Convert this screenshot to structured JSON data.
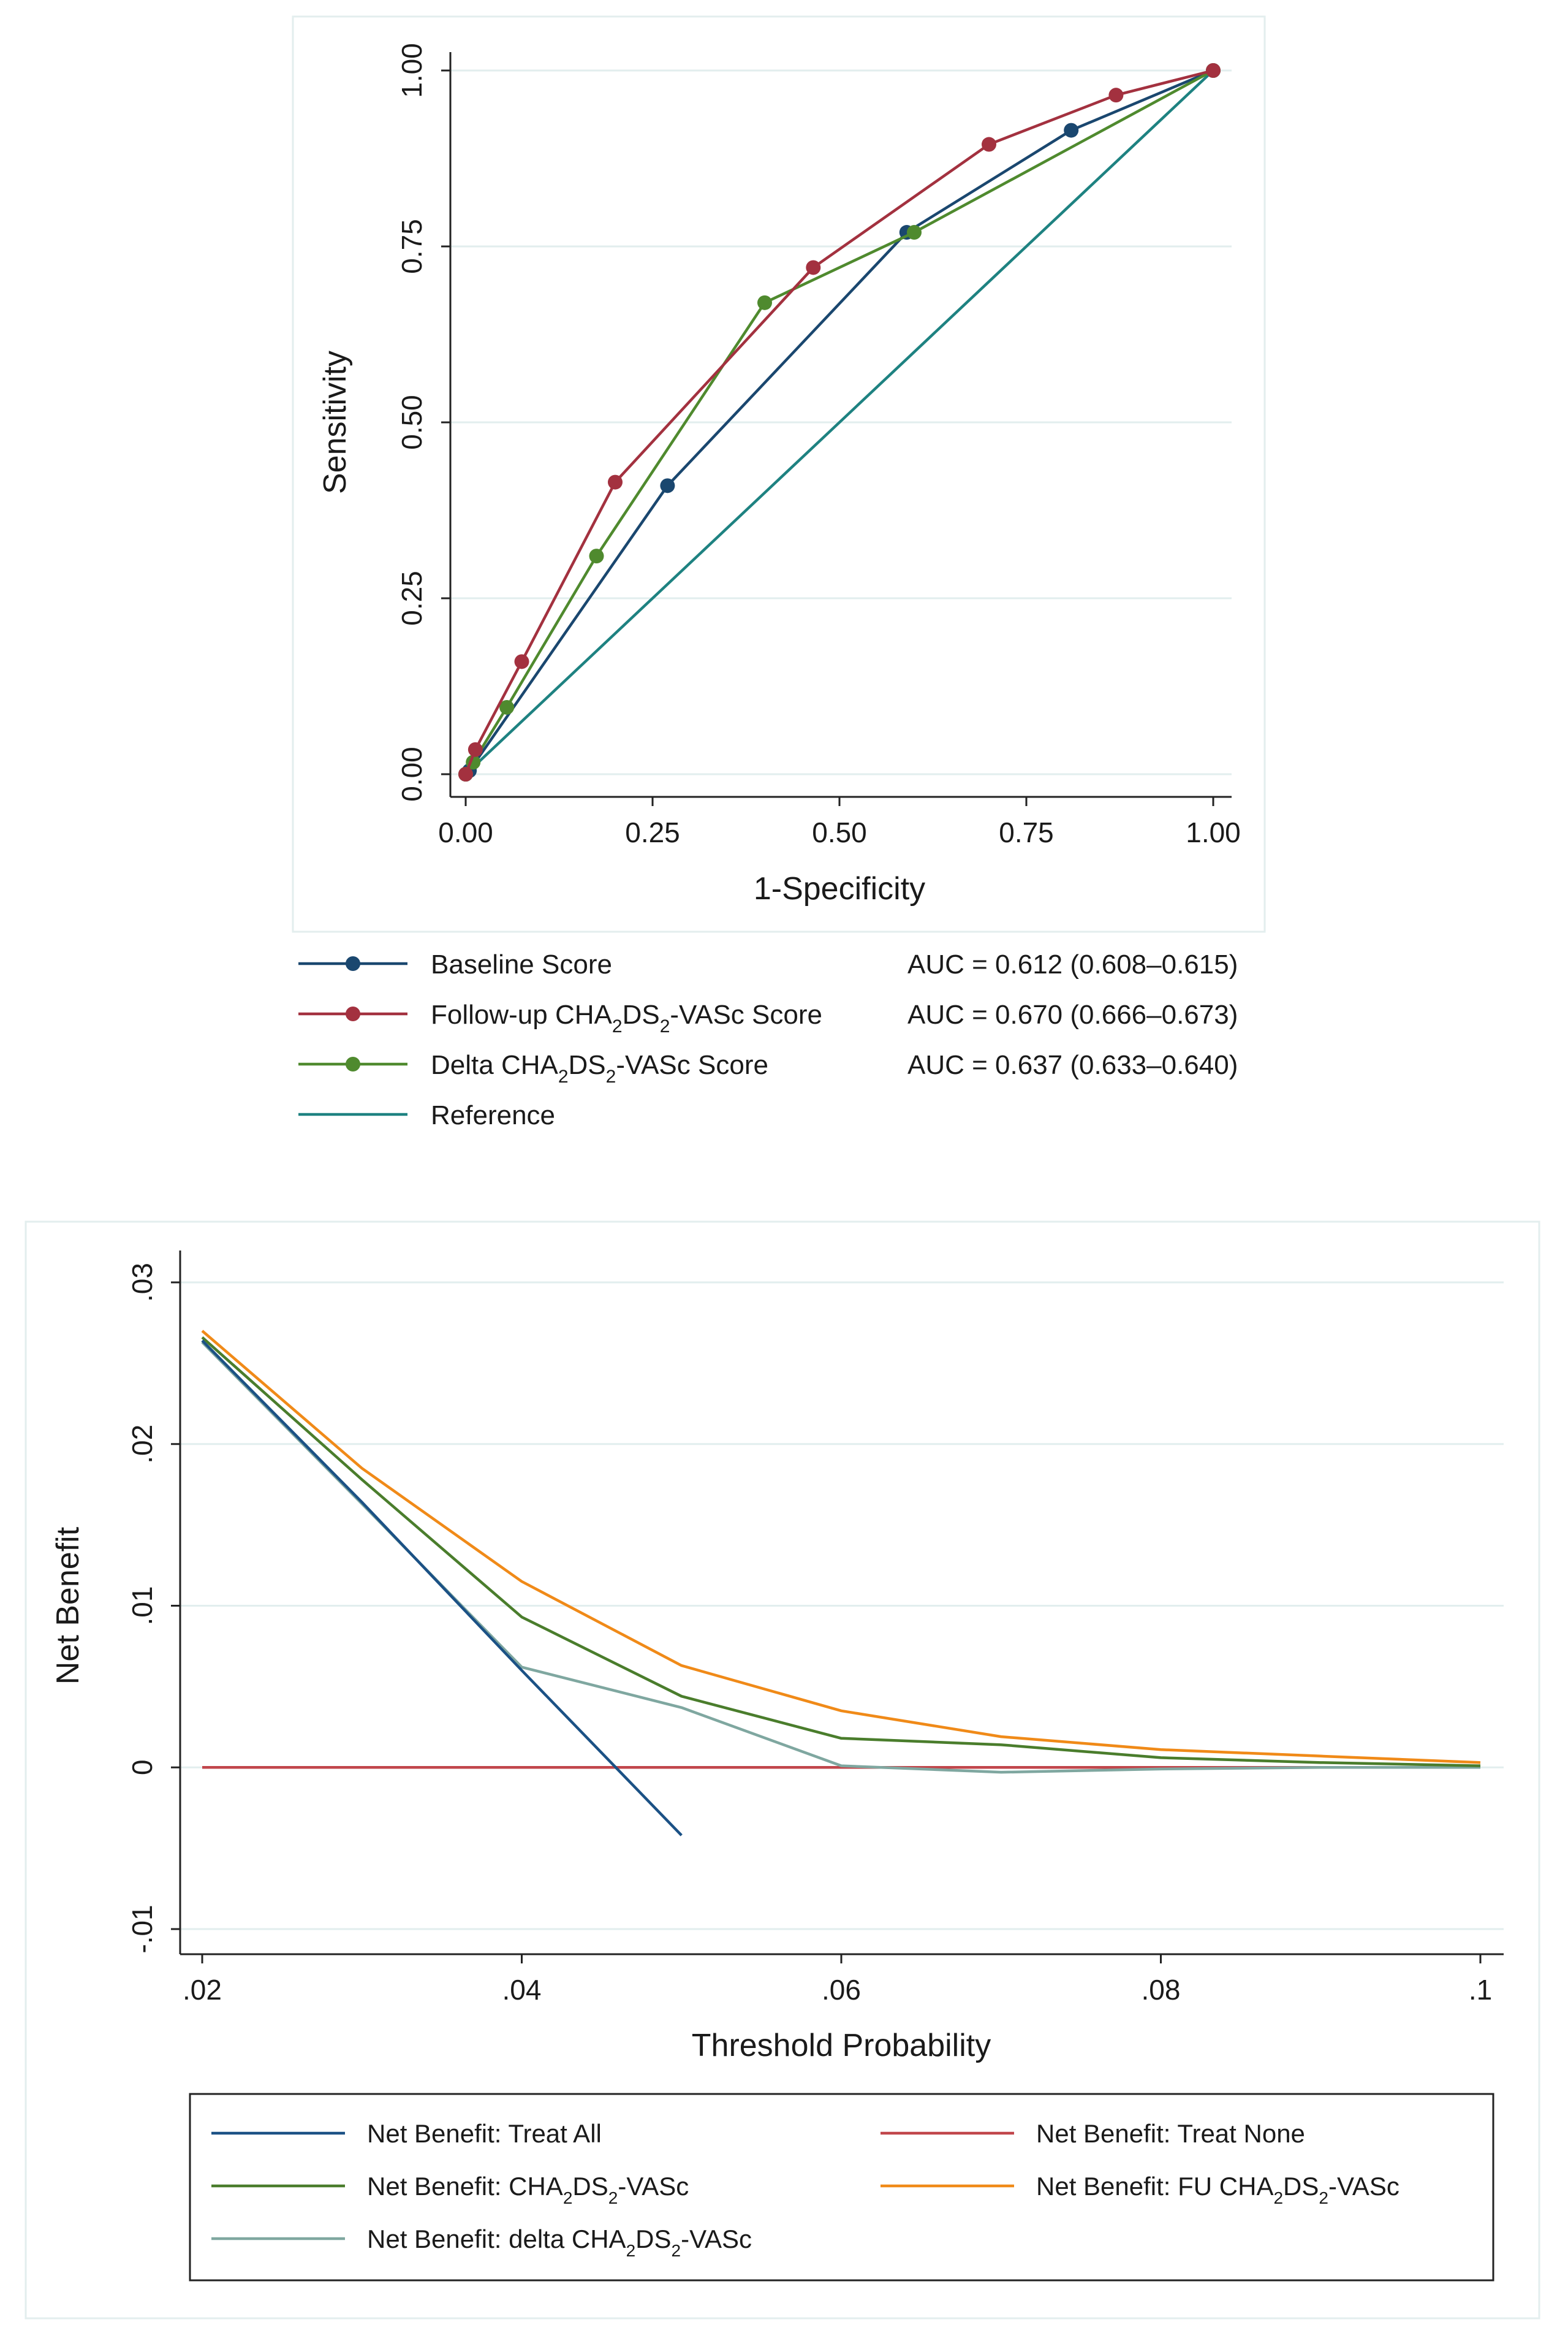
{
  "colors": {
    "grid": "#e2eeee",
    "frame": "#e3eeee",
    "axis": "#222222",
    "roc_baseline": "#1a476f",
    "roc_followup": "#a3313f",
    "roc_delta": "#4f8a2e",
    "roc_reference": "#1e8281",
    "dca_treat_all": "#1b5185",
    "dca_treat_none": "#c1464b",
    "dca_cha": "#4a7d2c",
    "dca_fu": "#f08a18",
    "dca_delta": "#7fa7a0"
  },
  "chart_data": [
    {
      "type": "line",
      "title": "",
      "xlabel": "1-Specificity",
      "ylabel": "Sensitivity",
      "xlim": [
        0,
        1
      ],
      "ylim": [
        0,
        1
      ],
      "xticks": [
        "0.00",
        "0.25",
        "0.50",
        "0.75",
        "1.00"
      ],
      "yticks": [
        "0.00",
        "0.25",
        "0.50",
        "0.75",
        "1.00"
      ],
      "grid": true,
      "legend_position": "bottom",
      "series": [
        {
          "name": "Baseline Score",
          "name_parts": [
            "Baseline Score"
          ],
          "auc": "AUC = 0.612 (0.608–0.615)",
          "color_key": "roc_baseline",
          "markers": true,
          "x": [
            0,
            0.005,
            0.27,
            0.59,
            0.81,
            1.0
          ],
          "y": [
            0,
            0.005,
            0.41,
            0.77,
            0.915,
            1.0
          ]
        },
        {
          "name": "Follow-up CHA2DS2-VASc Score",
          "name_parts": [
            "Follow-up CHA",
            "2",
            "DS",
            "2",
            "-VASc Score"
          ],
          "auc": "AUC = 0.670 (0.666–0.673)",
          "color_key": "roc_followup",
          "markers": true,
          "x": [
            0,
            0.013,
            0.075,
            0.2,
            0.465,
            0.7,
            0.87,
            1.0
          ],
          "y": [
            0,
            0.035,
            0.16,
            0.415,
            0.72,
            0.895,
            0.965,
            1.0
          ]
        },
        {
          "name": "Delta CHA2DS2-VASc Score",
          "name_parts": [
            "Delta CHA",
            "2",
            "DS",
            "2",
            "-VASc Score"
          ],
          "auc": "AUC = 0.637 (0.633–0.640)",
          "color_key": "roc_delta",
          "markers": true,
          "x": [
            0,
            0.01,
            0.055,
            0.175,
            0.4,
            0.6,
            1.0
          ],
          "y": [
            0,
            0.017,
            0.095,
            0.31,
            0.67,
            0.77,
            1.0
          ]
        },
        {
          "name": "Reference",
          "name_parts": [
            "Reference"
          ],
          "auc": "",
          "color_key": "roc_reference",
          "markers": false,
          "x": [
            0,
            1
          ],
          "y": [
            0,
            1
          ]
        }
      ]
    },
    {
      "type": "line",
      "title": "",
      "xlabel": "Threshold Probability",
      "ylabel": "Net Benefit",
      "xlim": [
        0.02,
        0.1
      ],
      "ylim": [
        -0.01,
        0.03
      ],
      "xticks": [
        {
          "value": 0.02,
          "label": ".02"
        },
        {
          "value": 0.04,
          "label": ".04"
        },
        {
          "value": 0.06,
          "label": ".06"
        },
        {
          "value": 0.08,
          "label": ".08"
        },
        {
          "value": 0.1,
          "label": ".1"
        }
      ],
      "yticks": [
        {
          "value": -0.01,
          "label": "-.01"
        },
        {
          "value": 0,
          "label": "0"
        },
        {
          "value": 0.01,
          "label": ".01"
        },
        {
          "value": 0.02,
          "label": ".02"
        },
        {
          "value": 0.03,
          "label": ".03"
        }
      ],
      "grid": true,
      "legend_position": "bottom",
      "series": [
        {
          "name": "Net Benefit: Treat All",
          "name_parts": [
            "Net Benefit: Treat All"
          ],
          "color_key": "dca_treat_all",
          "x": [
            0.02,
            0.03,
            0.04,
            0.05
          ],
          "y": [
            0.0264,
            0.0164,
            0.006,
            -0.0042
          ]
        },
        {
          "name": "Net Benefit: Treat None",
          "name_parts": [
            "Net Benefit: Treat None"
          ],
          "color_key": "dca_treat_none",
          "x": [
            0.02,
            0.1
          ],
          "y": [
            0,
            0
          ]
        },
        {
          "name": "Net Benefit: CHA2DS2-VASc",
          "name_parts": [
            "Net Benefit: ",
            "CHA",
            "2",
            "DS",
            "2",
            "-VASc"
          ],
          "color_key": "dca_cha",
          "x": [
            0.02,
            0.03,
            0.04,
            0.05,
            0.06,
            0.07,
            0.08,
            0.09,
            0.1
          ],
          "y": [
            0.0266,
            0.0178,
            0.0093,
            0.0044,
            0.0018,
            0.0014,
            0.0006,
            0.0003,
            0.0001
          ]
        },
        {
          "name": "Net Benefit: FU CHA2DS2-VASc",
          "name_parts": [
            "Net Benefit: FU ",
            "CHA",
            "2",
            "DS",
            "2",
            "-VASc"
          ],
          "color_key": "dca_fu",
          "x": [
            0.02,
            0.03,
            0.04,
            0.05,
            0.06,
            0.07,
            0.08,
            0.09,
            0.1
          ],
          "y": [
            0.027,
            0.0185,
            0.0115,
            0.0063,
            0.0035,
            0.0019,
            0.0011,
            0.0007,
            0.0003
          ]
        },
        {
          "name": "Net Benefit: delta CHA2DS2-VASc",
          "name_parts": [
            "Net Benefit: delta ",
            "CHA",
            "2",
            "DS",
            "2",
            "-VASc"
          ],
          "color_key": "dca_delta",
          "x": [
            0.02,
            0.03,
            0.04,
            0.05,
            0.06,
            0.07,
            0.08,
            0.09,
            0.1
          ],
          "y": [
            0.0263,
            0.0163,
            0.0062,
            0.0037,
            0.0001,
            -0.0003,
            -0.0001,
            0.0,
            0.0
          ]
        }
      ]
    }
  ]
}
